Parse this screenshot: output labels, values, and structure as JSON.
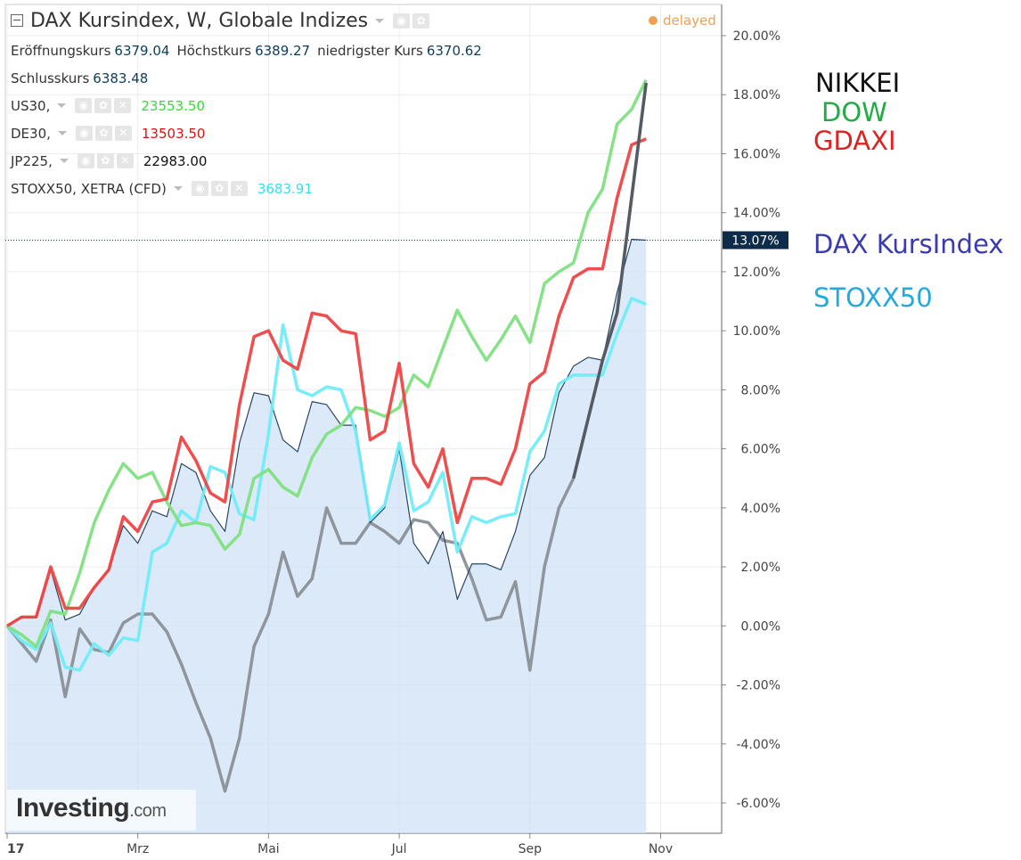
{
  "header": {
    "title": "DAX Kursindex, W, Globale Indizes",
    "delayed": "delayed"
  },
  "ohlc": {
    "open_label": "Eröffnungskurs",
    "open": "6379.04",
    "high_label": "Höchstkurs",
    "high": "6389.27",
    "low_label": "niedrigster Kurs",
    "low": "6370.62",
    "close_label": "Schlusskurs",
    "close": "6383.48"
  },
  "legend": [
    {
      "symbol": "US30,",
      "value": "23553.50",
      "color": "#33dd33"
    },
    {
      "symbol": "DE30,",
      "value": "13503.50",
      "color": "#dd1111"
    },
    {
      "symbol": "JP225,",
      "value": "22983.00",
      "color": "#111111"
    },
    {
      "symbol": "STOXX50, XETRA (CFD)",
      "value": "3683.91",
      "color": "#33e0ee"
    }
  ],
  "side_labels": {
    "nikkei": "NIKKEI",
    "dow": "DOW",
    "gdaxi": "GDAXI",
    "dax": "DAX KursIndex",
    "stoxx": "STOXX50"
  },
  "logo": {
    "main": "Investing",
    "suffix": ".com"
  },
  "chart_data": {
    "type": "line",
    "x_ticks": [
      "17",
      "Mrz",
      "Mai",
      "Jul",
      "Sep",
      "Nov"
    ],
    "x_tick_index": [
      0,
      9,
      18,
      27,
      36,
      45
    ],
    "y_ticks": [
      "20.00%",
      "18.00%",
      "16.00%",
      "14.00%",
      "12.00%",
      "10.00%",
      "8.00%",
      "6.00%",
      "4.00%",
      "2.00%",
      "0.00%",
      "-2.00%",
      "-4.00%",
      "-6.00%"
    ],
    "ylim": [
      -7.2,
      21.2
    ],
    "current_value_label": "13.07%",
    "current_value": 13.07,
    "series": [
      {
        "name": "DAX KursIndex",
        "color": "#1d3d5c",
        "fill": "#cfe2f5",
        "width": 1.2,
        "values": [
          0,
          0.3,
          0.3,
          1.9,
          0.2,
          0.4,
          1.3,
          1.9,
          3.4,
          2.8,
          3.9,
          3.7,
          5.5,
          5.2,
          3.9,
          3.2,
          6.2,
          7.9,
          7.8,
          6.3,
          5.9,
          7.6,
          7.5,
          6.8,
          6.8,
          3.5,
          4.0,
          6.0,
          2.8,
          2.1,
          3.2,
          0.9,
          2.1,
          2.1,
          1.9,
          3.2,
          5.1,
          5.7,
          7.9,
          8.8,
          9.1,
          9.0,
          11.3,
          13.1,
          13.07
        ]
      },
      {
        "name": "STOXX50",
        "color": "#70ecf8",
        "width": 3.5,
        "values": [
          0,
          -0.5,
          -0.8,
          0.1,
          -1.4,
          -1.5,
          -0.6,
          -1.0,
          -0.4,
          -0.5,
          2.5,
          2.8,
          3.9,
          3.5,
          5.4,
          5.2,
          3.8,
          3.6,
          6.5,
          10.2,
          8.0,
          7.8,
          8.1,
          8.0,
          6.6,
          3.6,
          4.1,
          6.2,
          3.9,
          4.2,
          5.2,
          2.5,
          3.7,
          3.5,
          3.7,
          3.8,
          5.9,
          6.6,
          8.2,
          8.5,
          8.5,
          8.5,
          9.9,
          11.1,
          10.9
        ]
      },
      {
        "name": "DOW",
        "color": "#80e080",
        "width": 3.5,
        "values": [
          0,
          -0.3,
          -0.7,
          0.5,
          0.4,
          1.8,
          3.5,
          4.6,
          5.5,
          5.0,
          5.2,
          4.2,
          3.4,
          3.5,
          3.4,
          2.6,
          3.1,
          5.0,
          5.3,
          4.7,
          4.4,
          5.7,
          6.5,
          6.8,
          7.4,
          7.3,
          7.1,
          7.4,
          8.5,
          8.1,
          9.4,
          10.7,
          9.8,
          9.0,
          9.7,
          10.5,
          9.6,
          11.6,
          12.0,
          12.3,
          14.0,
          14.8,
          17.0,
          17.5,
          18.5
        ]
      },
      {
        "name": "GDAXI",
        "color": "#ee4444",
        "width": 3.5,
        "values": [
          0,
          0.3,
          0.3,
          2.0,
          0.6,
          0.6,
          1.3,
          1.9,
          3.7,
          3.2,
          4.2,
          4.3,
          6.4,
          5.6,
          4.5,
          4.2,
          7.5,
          9.8,
          10.0,
          9.0,
          8.7,
          10.6,
          10.5,
          10.0,
          9.9,
          6.3,
          6.6,
          8.9,
          5.5,
          4.7,
          6.0,
          3.5,
          5.0,
          5.0,
          4.8,
          6.0,
          8.2,
          8.6,
          10.5,
          11.8,
          12.1,
          12.1,
          14.5,
          16.3,
          16.5
        ]
      },
      {
        "name": "NIKKEI",
        "color": "#8a9097",
        "width": 3.5,
        "values": [
          0,
          -0.6,
          -1.2,
          0.2,
          -2.4,
          -0.1,
          -0.8,
          -0.9,
          0.1,
          0.4,
          0.4,
          -0.2,
          -1.3,
          -2.6,
          -3.8,
          -5.6,
          -3.8,
          -0.7,
          0.4,
          2.5,
          1.0,
          1.6,
          4.0,
          2.8,
          2.8,
          3.5,
          3.2,
          2.8,
          3.6,
          3.5,
          2.9,
          2.8,
          1.6,
          0.2,
          0.3,
          1.5,
          -1.5,
          2.0,
          4.0,
          5.0,
          7.0,
          9.0,
          10.6,
          14.5,
          18.4
        ]
      }
    ]
  }
}
